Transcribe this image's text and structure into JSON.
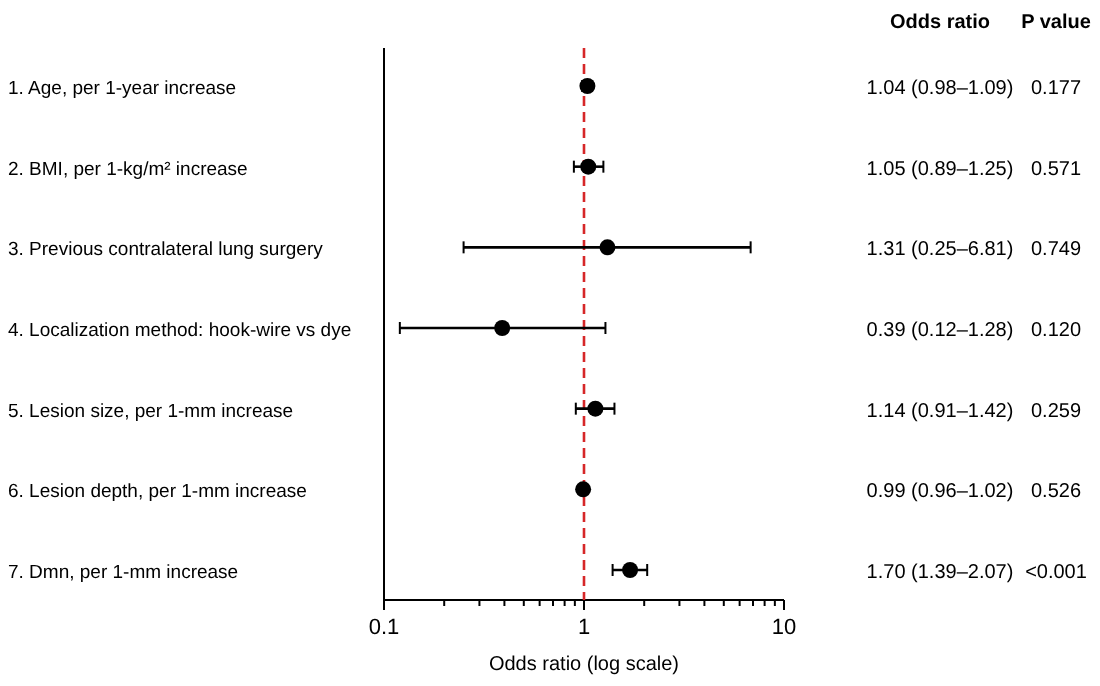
{
  "chart_data": {
    "type": "scatter",
    "orientation": "horizontal",
    "xlabel": "Odds ratio (log scale)",
    "log": "x",
    "xlim": [
      0.1,
      10
    ],
    "xticks": [
      0.1,
      {
        "value": 0.2,
        "label": null
      },
      {
        "value": 0.3,
        "label": null
      },
      {
        "value": 0.4,
        "label": null
      },
      {
        "value": 0.5,
        "label": null
      },
      {
        "value": 0.6,
        "label": null
      },
      {
        "value": 0.7,
        "label": null
      },
      {
        "value": 0.8,
        "label": null
      },
      {
        "value": 0.9,
        "label": null
      },
      1,
      {
        "value": 2,
        "label": null
      },
      {
        "value": 3,
        "label": null
      },
      {
        "value": 4,
        "label": null
      },
      {
        "value": 5,
        "label": null
      },
      {
        "value": 6,
        "label": null
      },
      {
        "value": 7,
        "label": null
      },
      {
        "value": 8,
        "label": null
      },
      {
        "value": 9,
        "label": null
      },
      10
    ],
    "categories": [
      "1. Age, per 1-year increase",
      "2. BMI, per 1-kg/m² increase",
      "3. Previous contralateral lung surgery",
      "4. Localization method: hook-wire vs dye",
      "5. Lesion size, per 1-mm increase",
      "6. Lesion depth, per 1-mm increase",
      "7. Dmn, per 1-mm increase"
    ],
    "values": [
      1.04,
      1.05,
      1.31,
      0.39,
      1.14,
      0.99,
      1.7
    ],
    "errors": [
      [
        0.98,
        1.09
      ],
      [
        0.89,
        1.25
      ],
      [
        0.25,
        6.81
      ],
      [
        0.12,
        1.28
      ],
      [
        0.91,
        1.42
      ],
      [
        0.96,
        1.02
      ],
      [
        1.39,
        2.07
      ]
    ],
    "color": "#000000",
    "marker": "circle",
    "value_labels": [
      "1.04 (0.98–1.09)",
      "1.05 (0.89–1.25)",
      "1.31 (0.25–6.81)",
      "0.39 (0.12–1.28)",
      "1.14 (0.91–1.42)",
      "0.99 (0.96–1.02)",
      "1.70 (1.39–2.07)"
    ],
    "annotations": [
      "Odds ratio",
      "P value",
      "0.177",
      "0.571",
      "0.749",
      "0.120",
      "0.259",
      "0.526",
      "<0.001"
    ],
    "ref_lines": [
      {
        "axis": "x",
        "value": 1,
        "color": "#d62728",
        "line_style": "dashed"
      }
    ],
    "grid": false
  }
}
